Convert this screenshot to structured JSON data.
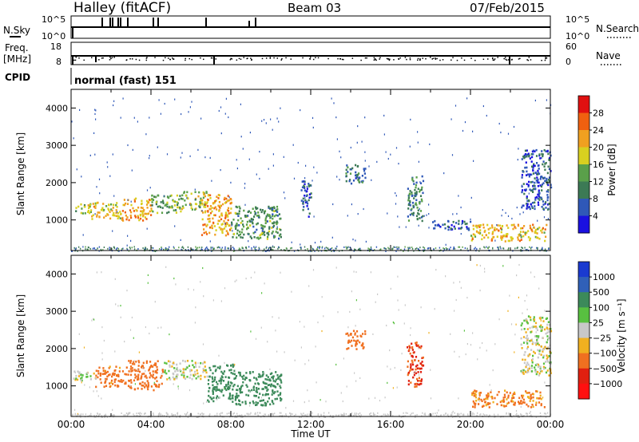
{
  "header": {
    "title": "Halley (fitACF)",
    "beam": "Beam 03",
    "date": "07/Feb/2015"
  },
  "panels": {
    "nsky": {
      "label": "N.Sky",
      "left_ticks": [
        "10^5",
        "10^0"
      ],
      "right_label": "N.Search",
      "right_ticks": [
        "10^5",
        "10^0"
      ]
    },
    "freq": {
      "label_line1": "Freq.",
      "label_line2": "[MHz]",
      "left_ticks": [
        "18",
        "8"
      ],
      "right_label": "Nave",
      "right_ticks": [
        "60",
        "0"
      ]
    },
    "cpid": {
      "label": "CPID",
      "text": "normal (fast) 151"
    }
  },
  "chart_data": [
    {
      "type": "heatmap",
      "title": "",
      "xlabel": "Time UT",
      "ylabel": "Slant Range [km]",
      "xlim": [
        0,
        24
      ],
      "ylim": [
        180,
        4500
      ],
      "x_ticks": [
        "00:00",
        "04:00",
        "08:00",
        "12:00",
        "16:00",
        "20:00",
        "00:00"
      ],
      "y_ticks": [
        "1000",
        "2000",
        "3000",
        "4000"
      ],
      "colorbar": {
        "label": "Power [dB]",
        "ticks": [
          "4",
          "8",
          "12",
          "16",
          "20",
          "24",
          "28"
        ],
        "colors": [
          "#1a10e0",
          "#2f58b8",
          "#3c7a55",
          "#5aa04a",
          "#d8d020",
          "#f0a020",
          "#f06010",
          "#e01010"
        ]
      },
      "echo_regions": [
        {
          "t0": 0.1,
          "t1": 1.0,
          "r0": 1150,
          "r1": 1450,
          "value": 16
        },
        {
          "t0": 1.0,
          "t1": 2.5,
          "r0": 1050,
          "r1": 1500,
          "value": 20
        },
        {
          "t0": 2.5,
          "t1": 4.0,
          "r0": 1000,
          "r1": 1600,
          "value": 22
        },
        {
          "t0": 4.0,
          "t1": 5.5,
          "r0": 1200,
          "r1": 1700,
          "value": 14
        },
        {
          "t0": 5.5,
          "t1": 6.8,
          "r0": 1300,
          "r1": 1800,
          "value": 16
        },
        {
          "t0": 6.5,
          "t1": 8.0,
          "r0": 600,
          "r1": 1700,
          "value": 22
        },
        {
          "t0": 8.0,
          "t1": 10.5,
          "r0": 500,
          "r1": 1400,
          "value": 12
        },
        {
          "t0": 11.5,
          "t1": 12.0,
          "r0": 1100,
          "r1": 2100,
          "value": 6
        },
        {
          "t0": 13.7,
          "t1": 14.7,
          "r0": 2000,
          "r1": 2500,
          "value": 8
        },
        {
          "t0": 16.8,
          "t1": 17.6,
          "r0": 1000,
          "r1": 2200,
          "value": 10
        },
        {
          "t0": 18.0,
          "t1": 20.0,
          "r0": 750,
          "r1": 1000,
          "value": 6
        },
        {
          "t0": 20.0,
          "t1": 23.8,
          "r0": 450,
          "r1": 900,
          "value": 20
        },
        {
          "t0": 22.5,
          "t1": 24.0,
          "r0": 1300,
          "r1": 2900,
          "value": 6
        }
      ]
    },
    {
      "type": "heatmap",
      "title": "",
      "xlabel": "Time UT",
      "ylabel": "Slant Range [km]",
      "xlim": [
        0,
        24
      ],
      "ylim": [
        180,
        4500
      ],
      "x_ticks": [
        "00:00",
        "04:00",
        "08:00",
        "12:00",
        "16:00",
        "20:00",
        "00:00"
      ],
      "y_ticks": [
        "1000",
        "2000",
        "3000",
        "4000"
      ],
      "colorbar": {
        "label": "Velocity [m s⁻¹]",
        "ticks": [
          "1000",
          "500",
          "100",
          "25",
          "−25",
          "−100",
          "−500",
          "−1000"
        ],
        "colors": [
          "#1a3ad0",
          "#3060b8",
          "#3c8a5a",
          "#58c040",
          "#c8c8c8",
          "#f0b020",
          "#f07020",
          "#e02010",
          "#ff1010"
        ]
      },
      "echo_regions": [
        {
          "t0": 0.1,
          "t1": 1.2,
          "r0": 1150,
          "r1": 1450,
          "value": 0
        },
        {
          "t0": 1.2,
          "t1": 2.8,
          "r0": 1000,
          "r1": 1550,
          "value": -150
        },
        {
          "t0": 2.8,
          "t1": 4.6,
          "r0": 900,
          "r1": 1700,
          "value": -300
        },
        {
          "t0": 4.6,
          "t1": 6.8,
          "r0": 1200,
          "r1": 1700,
          "value": 0
        },
        {
          "t0": 6.8,
          "t1": 8.2,
          "r0": 600,
          "r1": 1600,
          "value": 200
        },
        {
          "t0": 8.2,
          "t1": 10.5,
          "r0": 500,
          "r1": 1400,
          "value": 200
        },
        {
          "t0": 13.7,
          "t1": 14.7,
          "r0": 2000,
          "r1": 2500,
          "value": -400
        },
        {
          "t0": 16.8,
          "t1": 17.6,
          "r0": 1000,
          "r1": 2200,
          "value": -500
        },
        {
          "t0": 20.0,
          "t1": 23.8,
          "r0": 450,
          "r1": 900,
          "value": -120
        },
        {
          "t0": 22.5,
          "t1": 24.0,
          "r0": 1300,
          "r1": 2900,
          "value": 0
        }
      ]
    }
  ]
}
